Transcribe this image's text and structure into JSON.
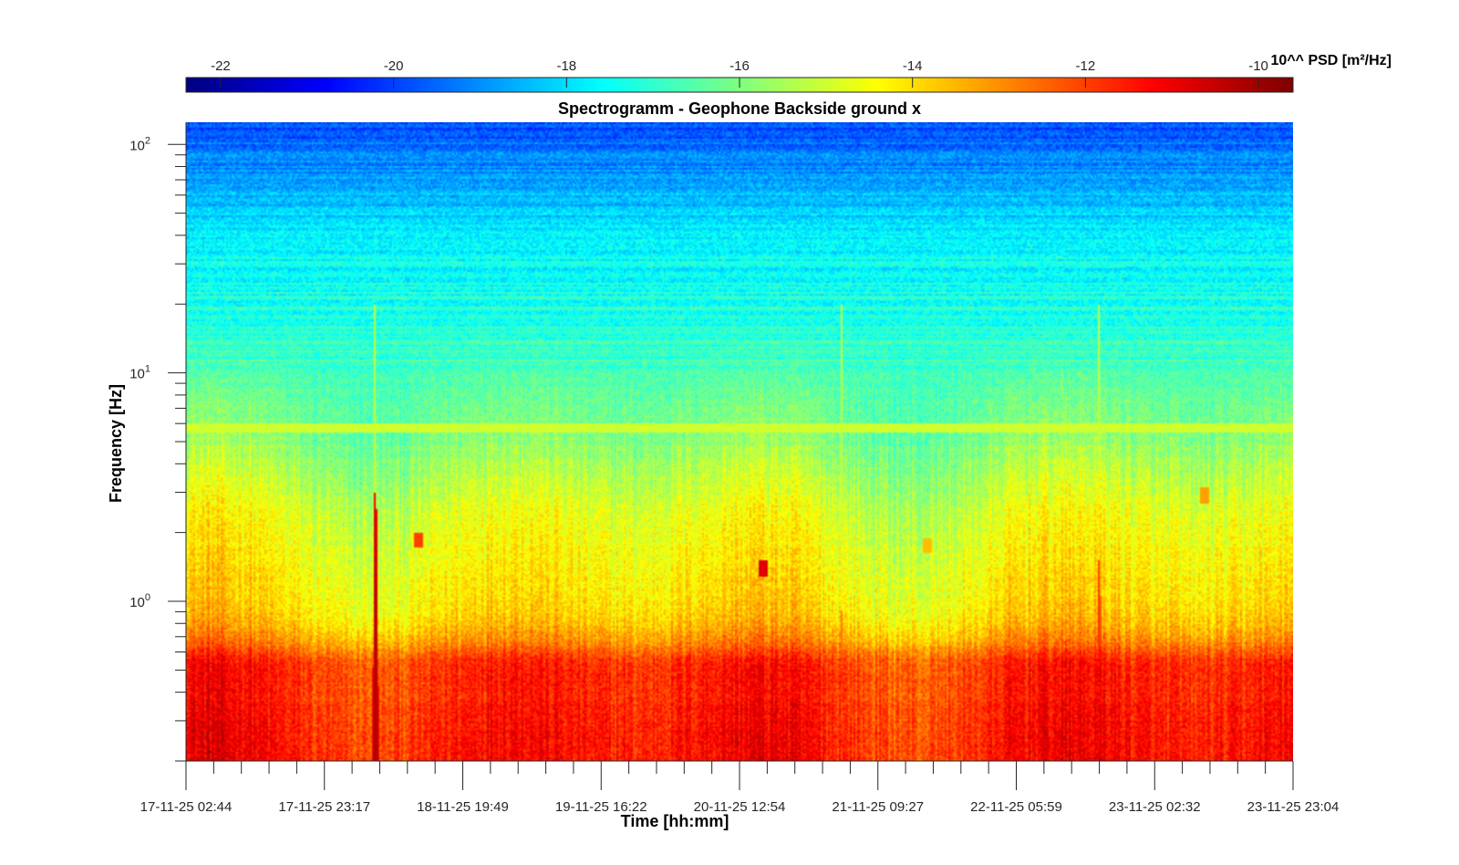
{
  "chart_data": {
    "type": "heatmap",
    "title": "Spectrogramm - Geophone Backside ground x",
    "xlabel": "Time [hh:mm]",
    "ylabel": "Frequency [Hz]",
    "x_ticks": [
      "17-11-25 02:44",
      "17-11-25 23:17",
      "18-11-25 19:49",
      "19-11-25 16:22",
      "20-11-25 12:54",
      "21-11-25 09:27",
      "22-11-25 05:59",
      "23-11-25 02:32",
      "23-11-25 23:04"
    ],
    "y_scale": "log",
    "ylim": [
      0.2,
      125
    ],
    "y_ticks": [
      {
        "value": 1,
        "base": "10",
        "exp": "0"
      },
      {
        "value": 10,
        "base": "10",
        "exp": "1"
      },
      {
        "value": 100,
        "base": "10",
        "exp": "2"
      }
    ],
    "colorbar": {
      "label": "10^^ PSD [m²/Hz]",
      "range": [
        -22.4,
        -9.6
      ],
      "ticks": [
        -22,
        -20,
        -18,
        -16,
        -14,
        -12,
        -10
      ],
      "colormap": "jet",
      "placement": "top"
    },
    "features": [
      {
        "type": "horizontal-line",
        "freq": 5.7,
        "level": -15.0
      },
      {
        "type": "burst",
        "time_index": 1.37,
        "freq_max": 3.0,
        "level": -10.0
      },
      {
        "type": "burst",
        "time_index": 6.6,
        "freq_max": 1.5,
        "level": -11.5
      },
      {
        "type": "burst",
        "time_index": 4.74,
        "freq_max": 0.9,
        "level": -12.5
      },
      {
        "type": "spot",
        "time_index": 4.17,
        "freq": 1.4,
        "level": -10.8
      },
      {
        "type": "spot",
        "time_index": 1.68,
        "freq": 1.85,
        "level": -12.0
      },
      {
        "type": "spot",
        "time_index": 7.36,
        "freq": 2.9,
        "level": -13.2
      },
      {
        "type": "spot",
        "time_index": 5.36,
        "freq": 1.75,
        "level": -13.6
      }
    ]
  }
}
